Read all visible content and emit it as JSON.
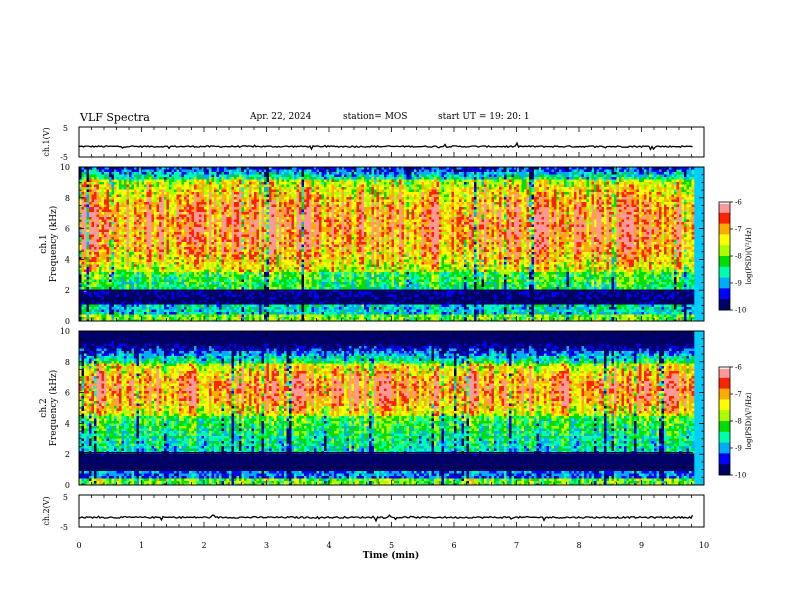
{
  "header": {
    "title": "VLF Spectra",
    "date": "Apr. 22, 2024",
    "station": "station= MOS",
    "start": "start  UT  =    19: 20: 1"
  },
  "chart_data": {
    "type": "heatmap",
    "xlabel": "Time (min)",
    "xlim": [
      0,
      10
    ],
    "xticks": [
      "0",
      "1",
      "2",
      "3",
      "4",
      "5",
      "6",
      "7",
      "8",
      "9",
      "10"
    ],
    "panels": [
      {
        "id": "ch1-waveform",
        "ylabel": "ch.1(V)",
        "ylim": [
          -5,
          5
        ],
        "yticks": [
          "5",
          "-5"
        ],
        "level": -1.5
      },
      {
        "id": "ch1-spectrogram",
        "ylabel_line1": "ch.1",
        "ylabel_line2": "Frequency (kHz)",
        "ylim": [
          0,
          10
        ],
        "yticks": [
          "0",
          "2",
          "4",
          "6",
          "8",
          "10"
        ],
        "intense_band_khz": [
          3.2,
          9.2
        ],
        "dark_band_khz": [
          1.2,
          2.1
        ],
        "colorbar": {
          "label": "log(PSD)(V²/Hz)",
          "ticks": [
            "-6",
            "-7",
            "-8",
            "-9",
            "-10"
          ],
          "range": [
            -10,
            -6
          ]
        }
      },
      {
        "id": "ch2-spectrogram",
        "ylabel_line1": "ch.2",
        "ylabel_line2": "Frequency (kHz)",
        "ylim": [
          0,
          10
        ],
        "yticks": [
          "0",
          "2",
          "4",
          "6",
          "8",
          "10"
        ],
        "intense_band_khz": [
          4.5,
          8.0
        ],
        "dark_band_khz": [
          1.0,
          2.2
        ],
        "colorbar": {
          "label": "log(PSD)(V²/Hz)",
          "ticks": [
            "-6",
            "-7",
            "-8",
            "-9",
            "-10"
          ],
          "range": [
            -10,
            -6
          ]
        }
      },
      {
        "id": "ch2-waveform",
        "ylabel": "ch.2(V)",
        "ylim": [
          -5,
          5
        ],
        "yticks": [
          "5",
          "-5"
        ],
        "level": -2.0
      }
    ],
    "data_end_min": 9.82,
    "colormap": [
      "#000066",
      "#0000ff",
      "#00aaff",
      "#00ffaa",
      "#00dd00",
      "#aaff00",
      "#ffff00",
      "#ffaa00",
      "#ff2200",
      "#ff9999",
      "#ffffff"
    ]
  }
}
